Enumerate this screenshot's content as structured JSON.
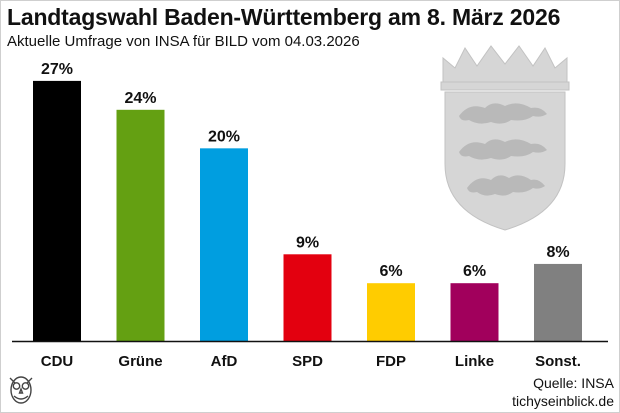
{
  "title": "Landtagswahl Baden-Württemberg am 8. März 2026",
  "subtitle": "Aktuelle Umfrage von INSA für BILD vom 04.03.2026",
  "source": {
    "line1": "Quelle: INSA",
    "line2": "tichyseinblick.de"
  },
  "chart_data": {
    "type": "bar",
    "categories": [
      "CDU",
      "Grüne",
      "AfD",
      "SPD",
      "FDP",
      "Linke",
      "Sonst."
    ],
    "values": [
      27,
      24,
      20,
      9,
      6,
      6,
      8
    ],
    "value_labels": [
      "27%",
      "24%",
      "20%",
      "9%",
      "6%",
      "6%",
      "8%"
    ],
    "colors": [
      "#000000",
      "#64a012",
      "#009ee0",
      "#e3000f",
      "#ffcc00",
      "#a1005c",
      "#808080"
    ],
    "ylim": [
      0,
      30
    ],
    "grid": false,
    "legend": "none"
  },
  "icons": {
    "coat_of_arms": "baden-wuerttemberg-coat-of-arms-icon",
    "logo": "owl-logo-icon"
  },
  "colors": {
    "axis": "#111111",
    "coat": "#d4d4d4"
  }
}
